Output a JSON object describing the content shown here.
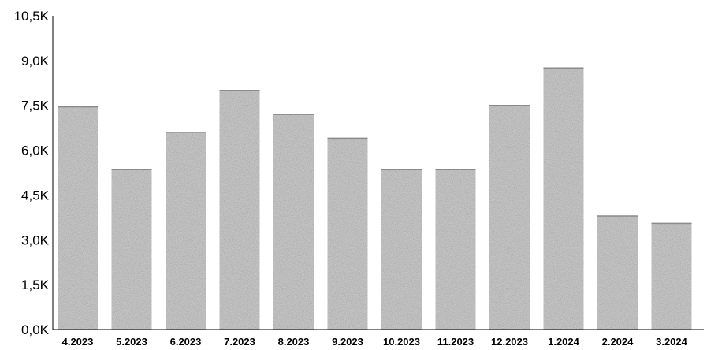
{
  "chart_data": {
    "type": "bar",
    "title": "",
    "xlabel": "",
    "ylabel": "",
    "categories": [
      "4.2023",
      "5.2023",
      "6.2023",
      "7.2023",
      "8.2023",
      "9.2023",
      "10.2023",
      "11.2023",
      "12.2023",
      "1.2024",
      "2.2024",
      "3.2024"
    ],
    "values": [
      7450,
      5350,
      6600,
      8000,
      7200,
      6400,
      5350,
      5350,
      7500,
      8750,
      3800,
      3550
    ],
    "ylim": [
      0,
      10500
    ],
    "yticks": [
      0,
      1500,
      3000,
      4500,
      6000,
      7500,
      9000,
      10500
    ],
    "ytick_labels": [
      "0,0K",
      "1,5K",
      "3,0K",
      "4,5K",
      "6,0K",
      "7,5K",
      "9,0K",
      "10,5K"
    ],
    "grid": false,
    "legend": "none",
    "bar_color": "#c4c4c4",
    "axis_color": "#000000"
  }
}
